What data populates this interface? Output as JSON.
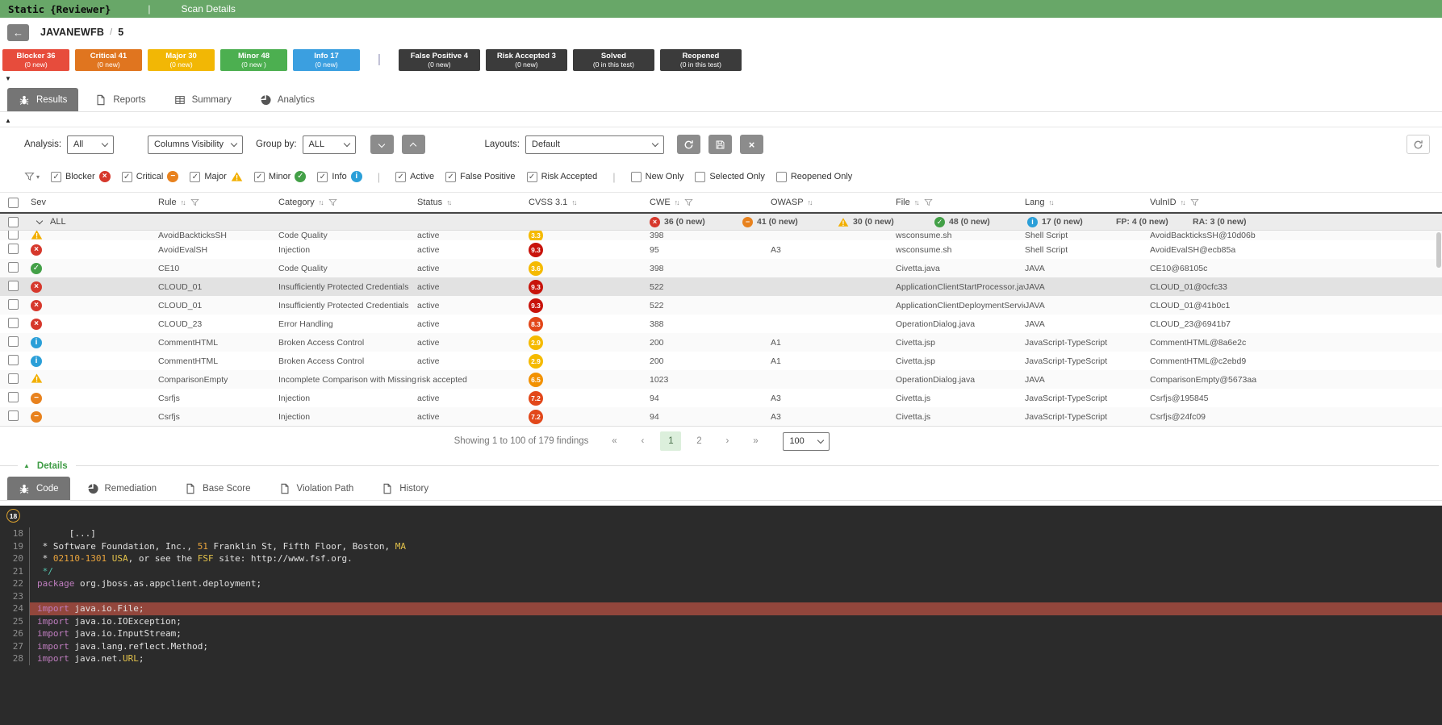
{
  "topbar": {
    "brand_static": "Static",
    "brand_reviewer": "{Reviewer}",
    "separator": "|",
    "title": "Scan Details",
    "bg": "#68a768"
  },
  "header": {
    "project": "JAVANEWFB",
    "separator": "/",
    "scan_number": "5"
  },
  "badges": [
    {
      "label": "Blocker 36",
      "sub": "(0 new)",
      "color": "#e74c3c"
    },
    {
      "label": "Critical 41",
      "sub": "(0 new)",
      "color": "#e0751f"
    },
    {
      "label": "Major 30",
      "sub": "(0 new)",
      "color": "#f2b705"
    },
    {
      "label": "Minor 48",
      "sub": "(0 new )",
      "color": "#4caf50"
    },
    {
      "label": "Info 17",
      "sub": "(0 new)",
      "color": "#3b9fe0"
    }
  ],
  "dark_badges": [
    {
      "label": "False Positive 4",
      "sub": "(0 new)"
    },
    {
      "label": "Risk Accepted 3",
      "sub": "(0 new)"
    },
    {
      "label": "Solved",
      "sub": "(0 in this test)"
    },
    {
      "label": "Reopened",
      "sub": "(0 in this test)"
    }
  ],
  "main_tabs": [
    {
      "label": "Results",
      "icon": "bug",
      "active": true
    },
    {
      "label": "Reports",
      "icon": "doc",
      "active": false
    },
    {
      "label": "Summary",
      "icon": "grid",
      "active": false
    },
    {
      "label": "Analytics",
      "icon": "pie",
      "active": false
    }
  ],
  "toolbar": {
    "analysis_label": "Analysis:",
    "analysis_value": "All",
    "columns_value": "Columns Visibility",
    "groupby_label": "Group by:",
    "groupby_value": "ALL",
    "layouts_label": "Layouts:",
    "layouts_value": "Default"
  },
  "filters": [
    {
      "label": "Blocker",
      "checked": true,
      "icon": "blocker"
    },
    {
      "label": "Critical",
      "checked": true,
      "icon": "critical"
    },
    {
      "label": "Major",
      "checked": true,
      "icon": "major"
    },
    {
      "label": "Minor",
      "checked": true,
      "icon": "minor"
    },
    {
      "label": "Info",
      "checked": true,
      "icon": "info"
    },
    {
      "sep": true
    },
    {
      "label": "Active",
      "checked": true
    },
    {
      "label": "False Positive",
      "checked": true
    },
    {
      "label": "Risk Accepted",
      "checked": true
    },
    {
      "sep": true
    },
    {
      "label": "New Only",
      "checked": false
    },
    {
      "label": "Selected Only",
      "checked": false
    },
    {
      "label": "Reopened Only",
      "checked": false
    }
  ],
  "table": {
    "columns": [
      {
        "label": "Sev",
        "sort": false,
        "filter": false
      },
      {
        "label": "Rule",
        "sort": true,
        "filter": true
      },
      {
        "label": "Category",
        "sort": true,
        "filter": true
      },
      {
        "label": "Status",
        "sort": true,
        "filter": false
      },
      {
        "label": "CVSS 3.1",
        "sort": true,
        "filter": false
      },
      {
        "label": "CWE",
        "sort": true,
        "filter": true
      },
      {
        "label": "OWASP",
        "sort": true,
        "filter": false
      },
      {
        "label": "File",
        "sort": true,
        "filter": true
      },
      {
        "label": "Lang",
        "sort": true,
        "filter": false
      },
      {
        "label": "VulnID",
        "sort": true,
        "filter": true
      }
    ],
    "group": {
      "label": "ALL",
      "counts": [
        {
          "icon": "blocker",
          "text": "36 (0 new)"
        },
        {
          "icon": "critical",
          "text": "41 (0 new)"
        },
        {
          "icon": "major",
          "text": "30 (0 new)"
        },
        {
          "icon": "minor",
          "text": "48 (0 new)"
        },
        {
          "icon": "info",
          "text": "17 (0 new)"
        },
        {
          "icon": null,
          "text": "FP: 4 (0 new)"
        },
        {
          "icon": null,
          "text": "RA: 3 (0 new)"
        }
      ],
      "count_positions": [
        805,
        920,
        1038,
        1158,
        1273,
        1383,
        1478
      ]
    },
    "rows": [
      {
        "clipped": true,
        "selected": false,
        "sev": "major",
        "rule": "AvoidBackticksSH",
        "category": "Code Quality",
        "status": "active",
        "cvss": "3.3",
        "cvss_level": "low",
        "cwe": "398",
        "owasp": "",
        "file": "wsconsume.sh",
        "lang": "Shell Script",
        "vulnid": "AvoidBackticksSH@10d06b"
      },
      {
        "clipped": false,
        "selected": false,
        "sev": "blocker",
        "rule": "AvoidEvalSH",
        "category": "Injection",
        "status": "active",
        "cvss": "9.3",
        "cvss_level": "crit",
        "cwe": "95",
        "owasp": "A3",
        "file": "wsconsume.sh",
        "lang": "Shell Script",
        "vulnid": "AvoidEvalSH@ecb85a"
      },
      {
        "clipped": false,
        "selected": false,
        "sev": "minor",
        "rule": "CE10",
        "category": "Code Quality",
        "status": "active",
        "cvss": "3.6",
        "cvss_level": "low",
        "cwe": "398",
        "owasp": "",
        "file": "Civetta.java",
        "lang": "JAVA",
        "vulnid": "CE10@68105c"
      },
      {
        "clipped": false,
        "selected": true,
        "sev": "blocker",
        "rule": "CLOUD_01",
        "category": "Insufficiently Protected Credentials",
        "status": "active",
        "cvss": "9.3",
        "cvss_level": "crit",
        "cwe": "522",
        "owasp": "",
        "file": "ApplicationClientStartProcessor.java",
        "lang": "JAVA",
        "vulnid": "CLOUD_01@0cfc33"
      },
      {
        "clipped": false,
        "selected": false,
        "sev": "blocker",
        "rule": "CLOUD_01",
        "category": "Insufficiently Protected Credentials",
        "status": "active",
        "cvss": "9.3",
        "cvss_level": "crit",
        "cwe": "522",
        "owasp": "",
        "file": "ApplicationClientDeploymentService.java",
        "lang": "JAVA",
        "vulnid": "CLOUD_01@41b0c1"
      },
      {
        "clipped": false,
        "selected": false,
        "sev": "blocker",
        "rule": "CLOUD_23",
        "category": "Error Handling",
        "status": "active",
        "cvss": "8.3",
        "cvss_level": "high",
        "cwe": "388",
        "owasp": "",
        "file": "OperationDialog.java",
        "lang": "JAVA",
        "vulnid": "CLOUD_23@6941b7"
      },
      {
        "clipped": false,
        "selected": false,
        "sev": "info",
        "rule": "CommentHTML",
        "category": "Broken Access Control",
        "status": "active",
        "cvss": "2.9",
        "cvss_level": "low",
        "cwe": "200",
        "owasp": "A1",
        "file": "Civetta.jsp",
        "lang": "JavaScript-TypeScript",
        "vulnid": "CommentHTML@8a6e2c"
      },
      {
        "clipped": false,
        "selected": false,
        "sev": "info",
        "rule": "CommentHTML",
        "category": "Broken Access Control",
        "status": "active",
        "cvss": "2.9",
        "cvss_level": "low",
        "cwe": "200",
        "owasp": "A1",
        "file": "Civetta.jsp",
        "lang": "JavaScript-TypeScript",
        "vulnid": "CommentHTML@c2ebd9"
      },
      {
        "clipped": false,
        "selected": false,
        "sev": "major",
        "rule": "ComparisonEmpty",
        "category": "Incomplete Comparison with Missing Factors",
        "status": "risk accepted",
        "cvss": "6.5",
        "cvss_level": "med",
        "cwe": "1023",
        "owasp": "",
        "file": "OperationDialog.java",
        "lang": "JAVA",
        "vulnid": "ComparisonEmpty@5673aa"
      },
      {
        "clipped": false,
        "selected": false,
        "sev": "critical",
        "rule": "Csrfjs",
        "category": "Injection",
        "status": "active",
        "cvss": "7.2",
        "cvss_level": "high",
        "cwe": "94",
        "owasp": "A3",
        "file": "Civetta.js",
        "lang": "JavaScript-TypeScript",
        "vulnid": "Csrfjs@195845"
      },
      {
        "clipped": false,
        "selected": false,
        "sev": "critical",
        "rule": "Csrfjs",
        "category": "Injection",
        "status": "active",
        "cvss": "7.2",
        "cvss_level": "high",
        "cwe": "94",
        "owasp": "A3",
        "file": "Civetta.js",
        "lang": "JavaScript-TypeScript",
        "vulnid": "Csrfjs@24fc09"
      }
    ]
  },
  "pagination": {
    "text": "Showing 1 to 100 of 179 findings",
    "first": "«",
    "prev": "‹",
    "pages": [
      "1",
      "2"
    ],
    "active_page": "1",
    "next": "›",
    "last": "»",
    "page_size": "100"
  },
  "details": {
    "label": "Details",
    "tabs": [
      {
        "label": "Code",
        "icon": "bug",
        "active": true
      },
      {
        "label": "Remediation",
        "icon": "pie",
        "active": false
      },
      {
        "label": "Base Score",
        "icon": "doc",
        "active": false
      },
      {
        "label": "Violation Path",
        "icon": "doc",
        "active": false
      },
      {
        "label": "History",
        "icon": "doc",
        "active": false
      }
    ]
  },
  "code": {
    "marker": "18",
    "highlight_color": "#92463c",
    "lines": [
      {
        "n": "18",
        "hl": false,
        "seg": [
          {
            "t": "      [...]",
            "c": "pl"
          }
        ]
      },
      {
        "n": "19",
        "hl": false,
        "seg": [
          {
            "t": " * Software Foundation, Inc., ",
            "c": "pl"
          },
          {
            "t": "51",
            "c": "num"
          },
          {
            "t": " Franklin St, Fifth Floor, Boston, ",
            "c": "pl"
          },
          {
            "t": "MA",
            "c": "yel"
          }
        ]
      },
      {
        "n": "20",
        "hl": false,
        "seg": [
          {
            "t": " * ",
            "c": "pl"
          },
          {
            "t": "02110-1301",
            "c": "num"
          },
          {
            "t": " ",
            "c": "pl"
          },
          {
            "t": "USA",
            "c": "yel"
          },
          {
            "t": ", or see the ",
            "c": "pl"
          },
          {
            "t": "FSF",
            "c": "yel"
          },
          {
            "t": " site: http://www.fsf.org.",
            "c": "pl"
          }
        ]
      },
      {
        "n": "21",
        "hl": false,
        "seg": [
          {
            "t": " */",
            "c": "teal"
          }
        ]
      },
      {
        "n": "22",
        "hl": false,
        "seg": [
          {
            "t": "package",
            "c": "kw"
          },
          {
            "t": " org.jboss.as.appclient.deployment;",
            "c": "pl"
          }
        ]
      },
      {
        "n": "23",
        "hl": false,
        "seg": []
      },
      {
        "n": "24",
        "hl": true,
        "seg": [
          {
            "t": "import",
            "c": "kw"
          },
          {
            "t": " java.io.File;",
            "c": "pl"
          }
        ]
      },
      {
        "n": "25",
        "hl": false,
        "seg": [
          {
            "t": "import",
            "c": "kw"
          },
          {
            "t": " java.io.IOException;",
            "c": "pl"
          }
        ]
      },
      {
        "n": "26",
        "hl": false,
        "seg": [
          {
            "t": "import",
            "c": "kw"
          },
          {
            "t": " java.io.InputStream;",
            "c": "pl"
          }
        ]
      },
      {
        "n": "27",
        "hl": false,
        "seg": [
          {
            "t": "import",
            "c": "kw"
          },
          {
            "t": " java.lang.reflect.Method;",
            "c": "pl"
          }
        ]
      },
      {
        "n": "28",
        "hl": false,
        "seg": [
          {
            "t": "import",
            "c": "kw"
          },
          {
            "t": " java.net.",
            "c": "pl"
          },
          {
            "t": "URL",
            "c": "yel"
          },
          {
            "t": ";",
            "c": "pl"
          }
        ]
      }
    ]
  },
  "icons": {
    "back": "arrow-left",
    "collapse_down": "caret-down",
    "collapse_up": "caret-up",
    "blocker": "red-circle-x",
    "critical": "orange-circle-minus",
    "major": "yellow-triangle-exclaim",
    "minor": "green-circle-check",
    "info": "blue-circle-i",
    "funnel": "filter-funnel",
    "sort": "up-down-arrows",
    "refresh": "circular-arrow",
    "save": "floppy-disk",
    "close": "x"
  }
}
